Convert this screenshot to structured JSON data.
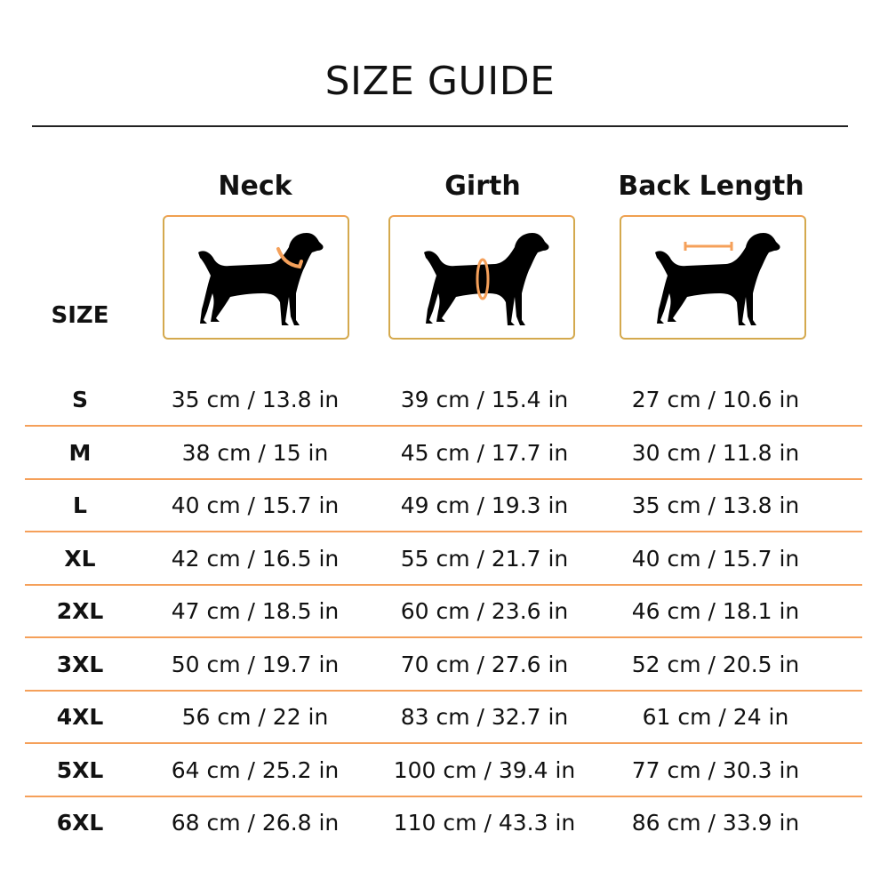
{
  "title": "SIZE GUIDE",
  "size_header": "SIZE",
  "columns": [
    {
      "label": "Neck",
      "icon": "dog-neck-measure-icon"
    },
    {
      "label": "Girth",
      "icon": "dog-girth-measure-icon"
    },
    {
      "label": "Back Length",
      "icon": "dog-back-length-measure-icon"
    }
  ],
  "colors": {
    "accent": "#f5a05a",
    "card_border": "#d4a94e"
  },
  "rows": [
    {
      "size": "S",
      "neck": "35 cm / 13.8 in",
      "girth": "39 cm / 15.4 in",
      "back": "27 cm / 10.6 in"
    },
    {
      "size": "M",
      "neck": "38 cm / 15 in",
      "girth": "45 cm / 17.7 in",
      "back": "30 cm / 11.8 in"
    },
    {
      "size": "L",
      "neck": "40 cm / 15.7 in",
      "girth": "49 cm / 19.3 in",
      "back": "35 cm / 13.8 in"
    },
    {
      "size": "XL",
      "neck": "42 cm / 16.5 in",
      "girth": "55 cm / 21.7 in",
      "back": "40 cm / 15.7 in"
    },
    {
      "size": "2XL",
      "neck": "47 cm / 18.5 in",
      "girth": "60 cm / 23.6 in",
      "back": "46 cm / 18.1 in"
    },
    {
      "size": "3XL",
      "neck": "50 cm / 19.7 in",
      "girth": "70 cm / 27.6 in",
      "back": "52 cm / 20.5 in"
    },
    {
      "size": "4XL",
      "neck": "56 cm / 22 in",
      "girth": "83 cm / 32.7 in",
      "back": "61 cm / 24 in"
    },
    {
      "size": "5XL",
      "neck": "64 cm / 25.2 in",
      "girth": "100 cm / 39.4 in",
      "back": "77 cm / 30.3 in"
    },
    {
      "size": "6XL",
      "neck": "68 cm / 26.8 in",
      "girth": "110 cm / 43.3 in",
      "back": "86 cm / 33.9 in"
    }
  ]
}
